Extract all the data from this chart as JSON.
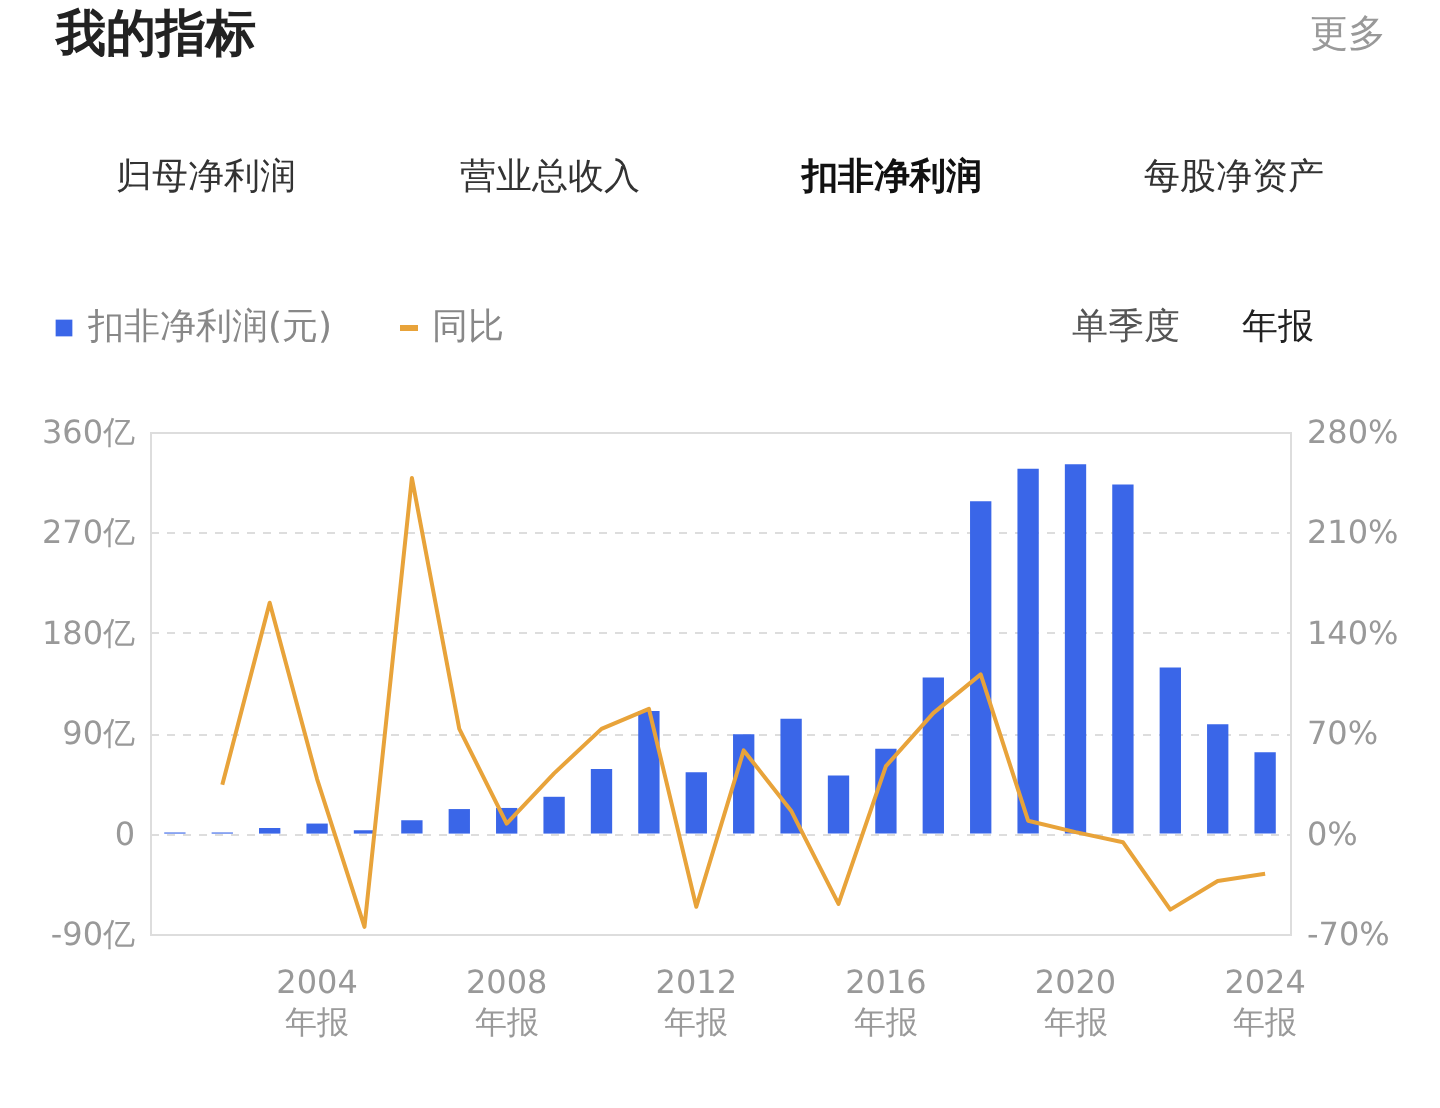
{
  "chart_data": {
    "type": "bar",
    "title": "我的指标",
    "annotations": [
      "更多",
      "归母净利润",
      "营业总收入",
      "扣非净利润",
      "每股净资产",
      "单季度",
      "年报"
    ],
    "categories": [
      null,
      null,
      null,
      "2004\n年报",
      null,
      null,
      null,
      "2008\n年报",
      null,
      null,
      null,
      "2012\n年报",
      null,
      null,
      null,
      "2016\n年报",
      null,
      null,
      null,
      "2020\n年报",
      null,
      null,
      null,
      "2024\n年报"
    ],
    "series": [
      {
        "name": "扣非净利润(元)",
        "color": "#3a66e8",
        "values": [
          1,
          1,
          5,
          9,
          3,
          12,
          22,
          23,
          33,
          58,
          110,
          55,
          89,
          103,
          52,
          76,
          140,
          298,
          327,
          331,
          313,
          149,
          98,
          73
        ]
      },
      {
        "name": "同比",
        "type": "line",
        "axis": "y2",
        "color": "#e8a33a",
        "values": [
          null,
          34,
          161,
          38,
          -65,
          248,
          73,
          7,
          42,
          73,
          87,
          -51,
          58,
          16,
          -49,
          47,
          84,
          111,
          9,
          1,
          -6,
          -53,
          -33,
          -28
        ]
      }
    ],
    "ylim": [
      -90,
      360
    ],
    "yticks": [
      {
        "value": -90,
        "label": "-90亿"
      },
      0,
      {
        "value": 90,
        "label": "90亿"
      },
      {
        "value": 180,
        "label": "180亿"
      },
      {
        "value": 270,
        "label": "270亿"
      },
      {
        "value": 360,
        "label": "360亿"
      }
    ],
    "y2lim": [
      -70,
      280
    ],
    "y2ticks": [
      {
        "value": -70,
        "label": "-70%"
      },
      {
        "value": 0,
        "label": "0%"
      },
      {
        "value": 70,
        "label": "70%"
      },
      {
        "value": 140,
        "label": "140%"
      },
      {
        "value": 210,
        "label": "210%"
      },
      {
        "value": 280,
        "label": "280%"
      }
    ],
    "grid": "y",
    "legend": "top left",
    "line_style": "solid",
    "marker": "none"
  }
}
